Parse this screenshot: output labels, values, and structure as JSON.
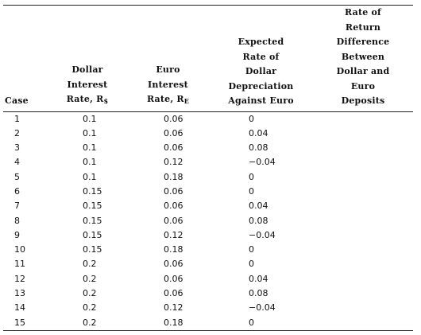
{
  "table": {
    "headers": {
      "case": "Case",
      "dollar_rate_text": "Dollar\nInterest\nRate, R",
      "dollar_rate_sub": "$",
      "euro_rate_text": "Euro\nInterest\nRate, R",
      "euro_rate_sub": "E",
      "depreciation": "Expected\nRate of\nDollar\nDepreciation\nAgainst Euro",
      "difference": "Rate of\nReturn\nDifference\nBetween\nDollar and\nEuro\nDeposits"
    },
    "rows": [
      {
        "case": "1",
        "dollar_rate": "0.1",
        "euro_rate": "0.06",
        "depreciation": "0",
        "difference": ""
      },
      {
        "case": "2",
        "dollar_rate": "0.1",
        "euro_rate": "0.06",
        "depreciation": "0.04",
        "difference": ""
      },
      {
        "case": "3",
        "dollar_rate": "0.1",
        "euro_rate": "0.06",
        "depreciation": "0.08",
        "difference": ""
      },
      {
        "case": "4",
        "dollar_rate": "0.1",
        "euro_rate": "0.12",
        "depreciation": "−0.04",
        "difference": ""
      },
      {
        "case": "5",
        "dollar_rate": "0.1",
        "euro_rate": "0.18",
        "depreciation": "0",
        "difference": ""
      },
      {
        "case": "6",
        "dollar_rate": "0.15",
        "euro_rate": "0.06",
        "depreciation": "0",
        "difference": ""
      },
      {
        "case": "7",
        "dollar_rate": "0.15",
        "euro_rate": "0.06",
        "depreciation": "0.04",
        "difference": ""
      },
      {
        "case": "8",
        "dollar_rate": "0.15",
        "euro_rate": "0.06",
        "depreciation": "0.08",
        "difference": ""
      },
      {
        "case": "9",
        "dollar_rate": "0.15",
        "euro_rate": "0.12",
        "depreciation": "−0.04",
        "difference": ""
      },
      {
        "case": "10",
        "dollar_rate": "0.15",
        "euro_rate": "0.18",
        "depreciation": "0",
        "difference": ""
      },
      {
        "case": "11",
        "dollar_rate": "0.2",
        "euro_rate": "0.06",
        "depreciation": "0",
        "difference": ""
      },
      {
        "case": "12",
        "dollar_rate": "0.2",
        "euro_rate": "0.06",
        "depreciation": "0.04",
        "difference": ""
      },
      {
        "case": "13",
        "dollar_rate": "0.2",
        "euro_rate": "0.06",
        "depreciation": "0.08",
        "difference": ""
      },
      {
        "case": "14",
        "dollar_rate": "0.2",
        "euro_rate": "0.12",
        "depreciation": "−0.04",
        "difference": ""
      },
      {
        "case": "15",
        "dollar_rate": "0.2",
        "euro_rate": "0.18",
        "depreciation": "0",
        "difference": ""
      }
    ]
  }
}
